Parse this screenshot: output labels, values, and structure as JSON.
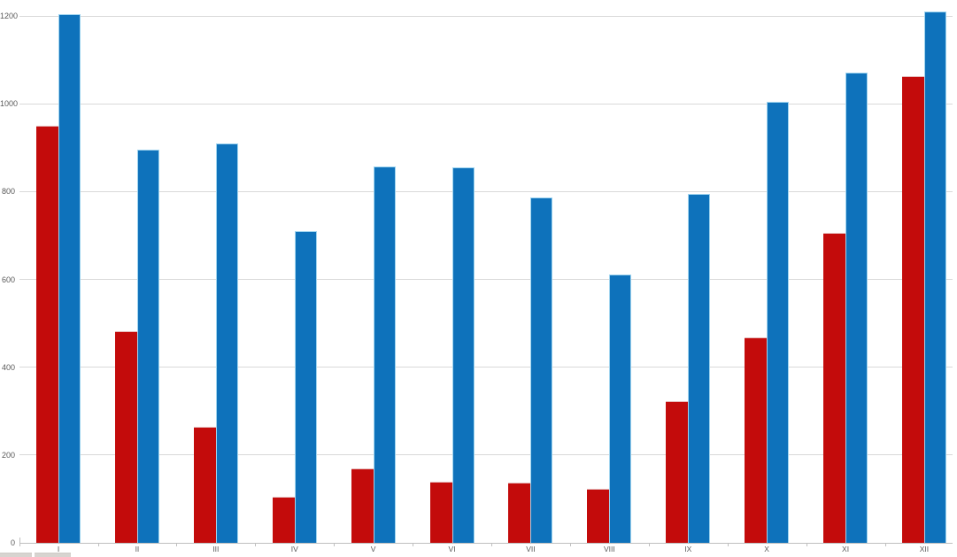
{
  "chart_data": {
    "type": "bar",
    "title": "",
    "xlabel": "",
    "ylabel": "",
    "categories": [
      "I",
      "II",
      "III",
      "IV",
      "V",
      "VI",
      "VII",
      "VIII",
      "IX",
      "X",
      "XI",
      "XII"
    ],
    "series": [
      {
        "name": "red",
        "color": "#c30b0b",
        "values": [
          950,
          483,
          265,
          105,
          170,
          139,
          137,
          123,
          323,
          467,
          705,
          1063
        ]
      },
      {
        "name": "blue",
        "color": "#0e72bb",
        "values": [
          1205,
          895,
          910,
          710,
          857,
          855,
          786,
          612,
          794,
          1004,
          1071,
          1210
        ]
      }
    ],
    "y_ticks": [
      0,
      200,
      400,
      600,
      800,
      1000,
      1200
    ],
    "ylim": [
      0,
      1236
    ],
    "grid": "horizontal",
    "gridline_color": "#d9d9d9",
    "axis_line_color": "#bfbfbf",
    "tick_label_color": "#595959",
    "legend": "none",
    "background": "#ffffff"
  },
  "artifacts": {
    "description": "two partially cut-off gray UI elements at bottom-left screen edge",
    "color": "#d7d4d0"
  }
}
